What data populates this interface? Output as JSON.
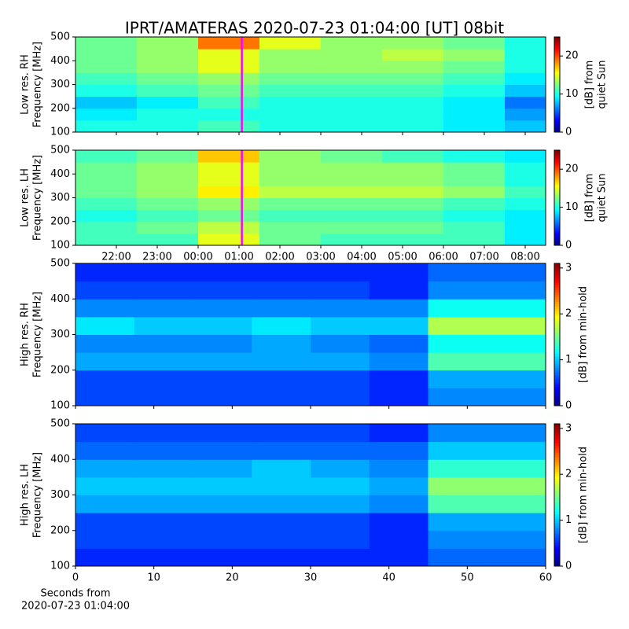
{
  "title": "IPRT/AMATERAS 2020-07-23 01:04:00 [UT]   08bit",
  "chart_data": [
    {
      "type": "heatmap",
      "ylabel": [
        "Low res. RH",
        "Frequency [MHz]"
      ],
      "cbar_label": [
        "[dB] from",
        "quiet Sun"
      ],
      "cmap": "jet",
      "xlim": [
        21,
        32.5
      ],
      "xtick_marks": [
        22,
        23,
        24,
        25,
        26,
        27,
        28,
        29,
        30,
        31,
        32
      ],
      "ylim": [
        100,
        500
      ],
      "yticks": [
        100,
        200,
        300,
        400,
        500
      ],
      "xbins": [
        21,
        22.5,
        24,
        25.5,
        27,
        28.5,
        30,
        31.5,
        32.5
      ],
      "ybins": [
        100,
        150,
        200,
        250,
        300,
        350,
        400,
        450,
        500
      ],
      "z": [
        [
          10,
          10,
          11,
          10,
          10,
          10,
          9,
          8
        ],
        [
          9,
          10,
          10,
          10,
          10,
          10,
          9,
          7
        ],
        [
          8,
          9,
          11,
          10,
          10,
          10,
          9,
          6
        ],
        [
          10,
          11,
          12,
          11,
          11,
          11,
          10,
          8
        ],
        [
          11,
          12,
          13,
          12,
          12,
          12,
          11,
          9
        ],
        [
          12,
          13,
          15,
          13,
          13,
          13,
          12,
          10
        ],
        [
          12,
          13,
          15,
          13,
          13,
          14,
          13,
          10
        ],
        [
          12,
          13,
          19,
          15,
          13,
          13,
          12,
          10
        ]
      ],
      "zlim": [
        0,
        25
      ],
      "zticks": [
        0,
        10,
        20
      ],
      "markers": [
        {
          "x": 25.07,
          "color": "#ff00ff"
        }
      ]
    },
    {
      "type": "heatmap",
      "ylabel": [
        "Low res. LH",
        "Frequency [MHz]"
      ],
      "cbar_label": [
        "[dB] from",
        "quiet Sun"
      ],
      "cmap": "jet",
      "xlim": [
        21,
        32.5
      ],
      "xticks": [
        {
          "value": 22,
          "label": "22:00"
        },
        {
          "value": 23,
          "label": "23:00"
        },
        {
          "value": 24,
          "label": "00:00"
        },
        {
          "value": 25,
          "label": "01:00"
        },
        {
          "value": 26,
          "label": "02:00"
        },
        {
          "value": 27,
          "label": "03:00"
        },
        {
          "value": 28,
          "label": "04:00"
        },
        {
          "value": 29,
          "label": "05:00"
        },
        {
          "value": 30,
          "label": "06:00"
        },
        {
          "value": 31,
          "label": "07:00"
        },
        {
          "value": 32,
          "label": "08:00"
        }
      ],
      "ylim": [
        100,
        500
      ],
      "yticks": [
        100,
        200,
        300,
        400,
        500
      ],
      "xbins": [
        21,
        22.5,
        24,
        25.5,
        27,
        28.5,
        30,
        31.5,
        32.5
      ],
      "ybins": [
        100,
        150,
        200,
        250,
        300,
        350,
        400,
        450,
        500
      ],
      "z": [
        [
          11,
          11,
          15,
          12,
          11,
          11,
          11,
          9
        ],
        [
          11,
          12,
          14,
          12,
          12,
          12,
          11,
          9
        ],
        [
          10,
          11,
          12,
          11,
          11,
          11,
          10,
          9
        ],
        [
          11,
          12,
          13,
          12,
          12,
          12,
          11,
          10
        ],
        [
          12,
          13,
          16,
          14,
          14,
          14,
          13,
          11
        ],
        [
          12,
          13,
          15,
          13,
          13,
          13,
          12,
          10
        ],
        [
          12,
          13,
          15,
          13,
          13,
          13,
          12,
          10
        ],
        [
          11,
          12,
          17,
          13,
          12,
          11,
          10,
          9
        ]
      ],
      "zlim": [
        0,
        25
      ],
      "zticks": [
        0,
        10,
        20
      ],
      "markers": [
        {
          "x": 25.07,
          "color": "#ff00ff"
        }
      ]
    },
    {
      "type": "heatmap",
      "ylabel": [
        "High res. RH",
        "Frequency [MHz]"
      ],
      "cbar_label": [
        "[dB] from min-hold"
      ],
      "cmap": "jet",
      "xlim": [
        0,
        60
      ],
      "xtick_marks": [
        0,
        10,
        20,
        30,
        40,
        50,
        60
      ],
      "ylim": [
        100,
        500
      ],
      "yticks": [
        100,
        200,
        300,
        400,
        500
      ],
      "xbins": [
        0,
        7.5,
        15,
        22.5,
        30,
        37.5,
        45,
        52.5,
        60
      ],
      "ybins": [
        100,
        150,
        200,
        250,
        300,
        350,
        400,
        450,
        500
      ],
      "z": [
        [
          0.6,
          0.6,
          0.6,
          0.6,
          0.6,
          0.5,
          0.8,
          0.8
        ],
        [
          0.6,
          0.6,
          0.6,
          0.6,
          0.6,
          0.5,
          0.9,
          0.9
        ],
        [
          0.9,
          0.9,
          0.9,
          0.9,
          0.9,
          0.8,
          1.4,
          1.4
        ],
        [
          0.8,
          0.8,
          0.8,
          0.9,
          0.8,
          0.7,
          1.2,
          1.2
        ],
        [
          1.1,
          1.0,
          1.0,
          1.1,
          1.0,
          1.0,
          1.7,
          1.7
        ],
        [
          0.8,
          0.8,
          0.8,
          0.8,
          0.8,
          0.8,
          1.2,
          1.2
        ],
        [
          0.6,
          0.6,
          0.6,
          0.6,
          0.6,
          0.5,
          0.8,
          0.8
        ],
        [
          0.5,
          0.5,
          0.5,
          0.5,
          0.5,
          0.5,
          0.7,
          0.7
        ]
      ],
      "zlim": [
        0,
        3.1
      ],
      "zticks": [
        0,
        1,
        2,
        3
      ]
    },
    {
      "type": "heatmap",
      "ylabel": [
        "High res. LH",
        "Frequency [MHz]"
      ],
      "cbar_label": [
        "[dB] from min-hold"
      ],
      "cmap": "jet",
      "xlim": [
        0,
        60
      ],
      "xticks": [
        0,
        10,
        20,
        30,
        40,
        50,
        60
      ],
      "xlabel": [
        "Seconds from",
        "2020-07-23 01:04:00"
      ],
      "ylim": [
        100,
        500
      ],
      "yticks": [
        100,
        200,
        300,
        400,
        500
      ],
      "xbins": [
        0,
        7.5,
        15,
        22.5,
        30,
        37.5,
        45,
        52.5,
        60
      ],
      "ybins": [
        100,
        150,
        200,
        250,
        300,
        350,
        400,
        450,
        500
      ],
      "z": [
        [
          0.5,
          0.5,
          0.5,
          0.5,
          0.5,
          0.5,
          0.7,
          0.7
        ],
        [
          0.6,
          0.6,
          0.6,
          0.6,
          0.6,
          0.5,
          0.8,
          0.8
        ],
        [
          0.6,
          0.6,
          0.6,
          0.6,
          0.6,
          0.5,
          0.9,
          0.9
        ],
        [
          0.9,
          0.9,
          0.9,
          0.9,
          0.9,
          0.8,
          1.4,
          1.4
        ],
        [
          1.0,
          1.0,
          1.0,
          1.0,
          1.0,
          0.9,
          1.6,
          1.6
        ],
        [
          0.9,
          0.9,
          0.9,
          1.0,
          0.9,
          0.8,
          1.3,
          1.3
        ],
        [
          0.7,
          0.7,
          0.7,
          0.7,
          0.7,
          0.7,
          1.0,
          1.0
        ],
        [
          0.6,
          0.6,
          0.6,
          0.6,
          0.6,
          0.5,
          0.8,
          0.8
        ]
      ],
      "zlim": [
        0,
        3.1
      ],
      "zticks": [
        0,
        1,
        2,
        3
      ]
    }
  ]
}
